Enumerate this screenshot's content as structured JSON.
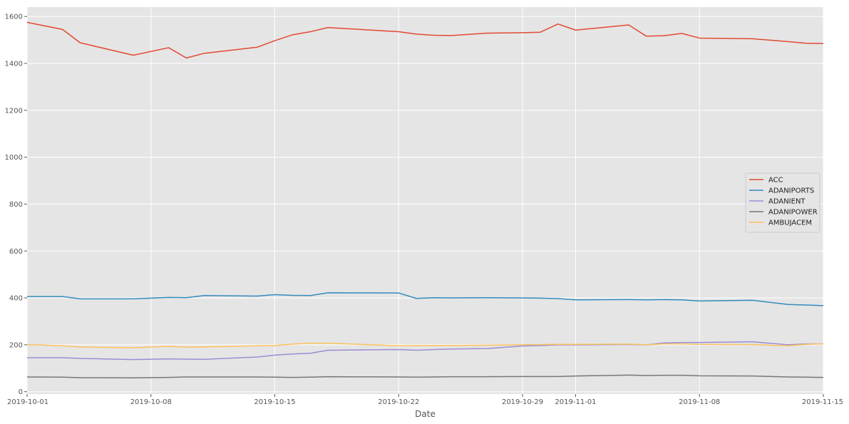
{
  "chart_data": {
    "type": "line",
    "title": "",
    "xlabel": "Date",
    "ylabel": "",
    "xlim": [
      "2019-10-01",
      "2019-11-15"
    ],
    "ylim": [
      -10,
      1640
    ],
    "grid": true,
    "legend_position": "center-right",
    "x_tick_labels": [
      "2019-10-01",
      "2019-10-08",
      "2019-10-15",
      "2019-10-22",
      "2019-10-29",
      "2019-11-01",
      "2019-11-08",
      "2019-11-15"
    ],
    "y_tick_labels": [
      "0",
      "200",
      "400",
      "600",
      "800",
      "1000",
      "1200",
      "1400",
      "1600"
    ],
    "dates": [
      "2019-10-01",
      "2019-10-03",
      "2019-10-04",
      "2019-10-07",
      "2019-10-09",
      "2019-10-10",
      "2019-10-11",
      "2019-10-14",
      "2019-10-15",
      "2019-10-16",
      "2019-10-17",
      "2019-10-18",
      "2019-10-22",
      "2019-10-23",
      "2019-10-24",
      "2019-10-25",
      "2019-10-27",
      "2019-10-29",
      "2019-10-30",
      "2019-10-31",
      "2019-11-01",
      "2019-11-04",
      "2019-11-05",
      "2019-11-06",
      "2019-11-07",
      "2019-11-08",
      "2019-11-11",
      "2019-11-13",
      "2019-11-14",
      "2019-11-15"
    ],
    "series": [
      {
        "name": "ACC",
        "color": "#E24A33",
        "values": [
          1575,
          1545,
          1488,
          1435,
          1467,
          1423,
          1443,
          1469,
          1497,
          1522,
          1535,
          1553,
          1535,
          1525,
          1520,
          1519,
          1529,
          1531,
          1533,
          1568,
          1542,
          1564,
          1516,
          1518,
          1528,
          1508,
          1505,
          1493,
          1486,
          1485
        ]
      },
      {
        "name": "ADANIPORTS",
        "color": "#348ABD",
        "values": [
          406,
          406,
          396,
          396,
          402,
          401,
          410,
          408,
          414,
          411,
          410,
          422,
          421,
          398,
          401,
          400,
          401,
          400,
          399,
          397,
          392,
          393,
          392,
          393,
          392,
          387,
          390,
          372,
          370,
          367
        ]
      },
      {
        "name": "ADANIENT",
        "color": "#988ED5",
        "values": [
          145,
          145,
          142,
          137,
          140,
          139,
          138,
          148,
          156,
          161,
          164,
          177,
          180,
          177,
          180,
          182,
          184,
          195,
          197,
          200,
          200,
          201,
          200,
          208,
          210,
          210,
          213,
          200,
          204,
          204
        ]
      },
      {
        "name": "ADANIPOWER",
        "color": "#777777",
        "values": [
          63,
          62,
          60,
          59,
          61,
          63,
          63,
          63,
          62,
          61,
          62,
          64,
          63,
          62,
          63,
          64,
          64,
          65,
          65,
          65,
          67,
          71,
          69,
          70,
          70,
          68,
          67,
          63,
          62,
          61
        ]
      },
      {
        "name": "AMBUJACEM",
        "color": "#FBC15E",
        "values": [
          201,
          196,
          191,
          187,
          194,
          190,
          191,
          196,
          197,
          203,
          207,
          207,
          196,
          197,
          197,
          197,
          198,
          200,
          201,
          202,
          202,
          203,
          200,
          204,
          204,
          202,
          201,
          196,
          202,
          204
        ]
      }
    ]
  }
}
